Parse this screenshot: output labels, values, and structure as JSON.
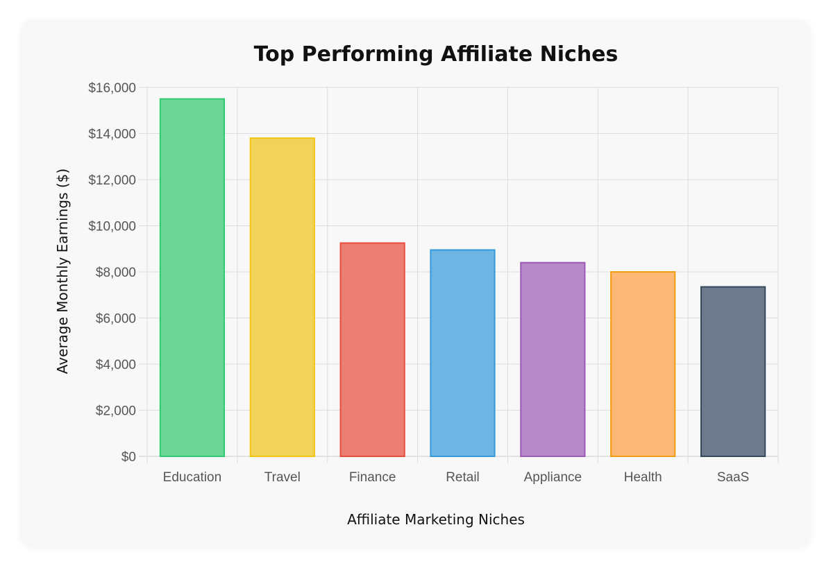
{
  "chart_data": {
    "type": "bar",
    "title": "Top Performing Affiliate Niches",
    "xlabel": "Affiliate Marketing Niches",
    "ylabel": "Average Monthly Earnings ($)",
    "categories": [
      "Education",
      "Travel",
      "Finance",
      "Retail",
      "Appliance",
      "Health",
      "SaaS"
    ],
    "values": [
      15500,
      13800,
      9250,
      8950,
      8400,
      8000,
      7350
    ],
    "ylim": [
      0,
      16000
    ],
    "yticks": [
      0,
      2000,
      4000,
      6000,
      8000,
      10000,
      12000,
      14000,
      16000
    ],
    "ytick_labels": [
      "$0",
      "$2,000",
      "$4,000",
      "$6,000",
      "$8,000",
      "$10,000",
      "$12,000",
      "$14,000",
      "$16,000"
    ],
    "grid": true,
    "legend": "none",
    "colors": [
      "#6ad594",
      "#f2d35a",
      "#ec7f74",
      "#6db5e3",
      "#b689c8",
      "#fcb876",
      "#6c7a8b"
    ],
    "border_colors": [
      "#2ecc71",
      "#f1c40f",
      "#e74c3c",
      "#3498db",
      "#9b59b6",
      "#f39c12",
      "#34495e"
    ]
  }
}
